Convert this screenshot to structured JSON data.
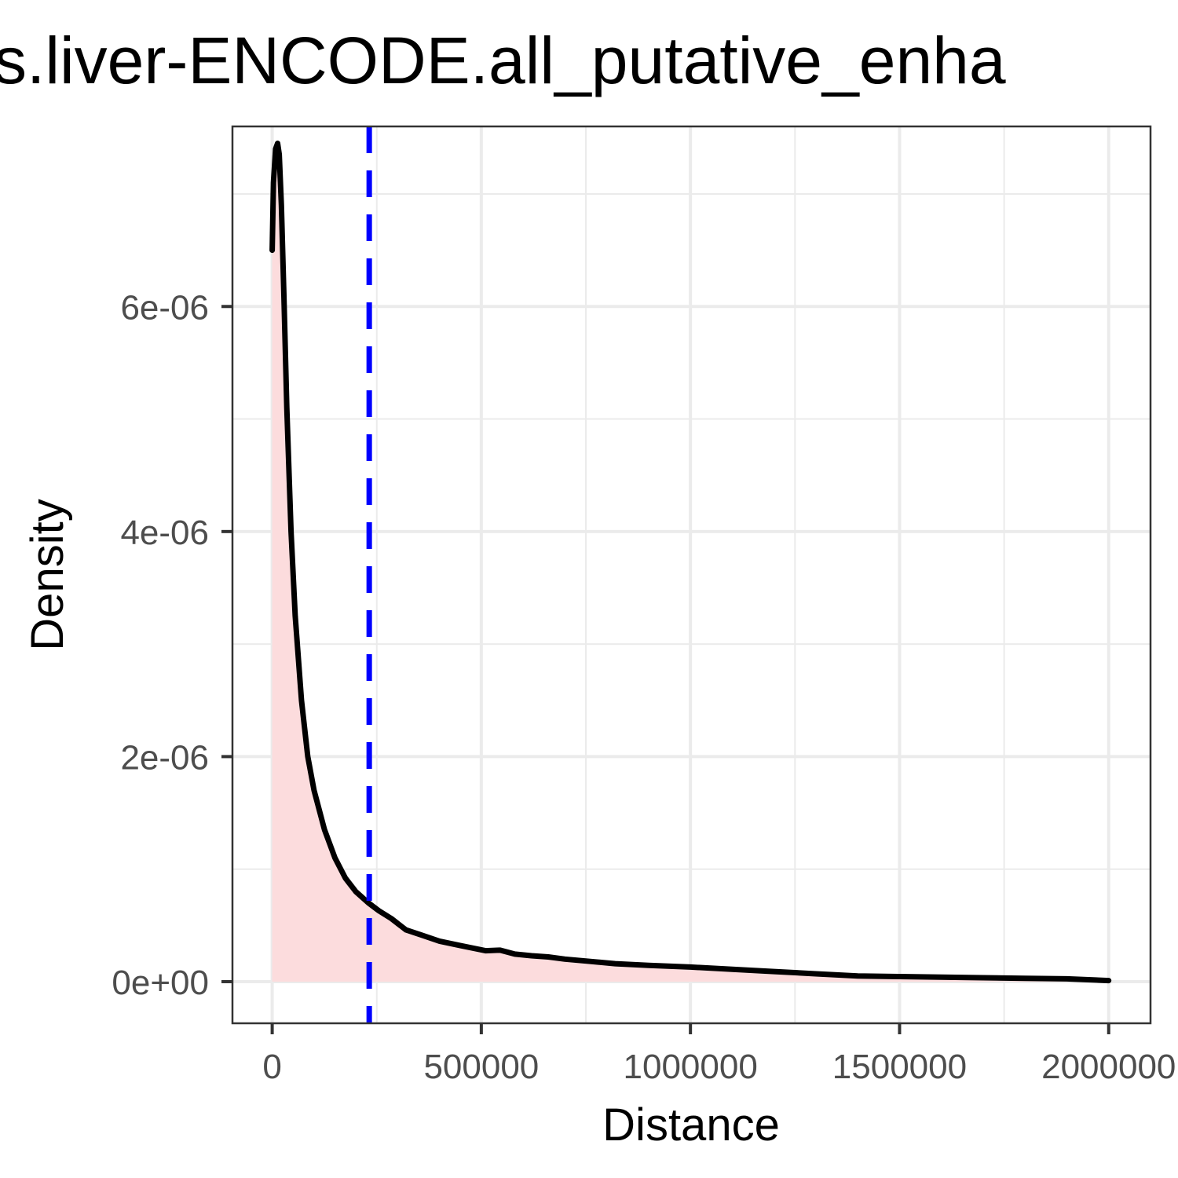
{
  "chart_data": {
    "type": "area",
    "title": "s.liver-ENCODE.all_putative_enha",
    "xlabel": "Distance",
    "ylabel": "Density",
    "xlim": [
      -95000,
      2100000
    ],
    "ylim": [
      -3.7e-07,
      7.6e-06
    ],
    "grid": true,
    "x_ticks": [
      {
        "value": 0,
        "label": "0"
      },
      {
        "value": 500000,
        "label": "500000"
      },
      {
        "value": 1000000,
        "label": "1000000"
      },
      {
        "value": 1500000,
        "label": "1500000"
      },
      {
        "value": 2000000,
        "label": "2000000"
      }
    ],
    "y_ticks": [
      {
        "value": 0,
        "label": "0e+00"
      },
      {
        "value": 2e-06,
        "label": "2e-06"
      },
      {
        "value": 4e-06,
        "label": "4e-06"
      },
      {
        "value": 6e-06,
        "label": "6e-06"
      }
    ],
    "x_minor": [
      250000,
      750000,
      1250000,
      1750000
    ],
    "y_minor": [
      1e-06,
      3e-06,
      5e-06,
      7e-06
    ],
    "series": [
      {
        "color": "#000000",
        "fill": "#fcdcdd",
        "x": [
          0,
          3000,
          8000,
          13000,
          17000,
          22000,
          28000,
          35000,
          45000,
          55000,
          70000,
          85000,
          100000,
          125000,
          150000,
          175000,
          200000,
          230000,
          255000,
          285000,
          320000,
          360000,
          400000,
          450000,
          510000,
          545000,
          580000,
          620000,
          660000,
          700000,
          760000,
          820000,
          900000,
          1000000,
          1100000,
          1200000,
          1300000,
          1400000,
          1500000,
          1600000,
          1700000,
          1800000,
          1900000,
          2000000
        ],
        "y": [
          6.5e-06,
          7.1e-06,
          7.4e-06,
          7.45e-06,
          7.35e-06,
          6.9e-06,
          6.1e-06,
          5.1e-06,
          4e-06,
          3.25e-06,
          2.5e-06,
          2e-06,
          1.7e-06,
          1.35e-06,
          1.1e-06,
          9.2e-07,
          8e-07,
          7e-07,
          6.3e-07,
          5.6e-07,
          4.6e-07,
          4.1e-07,
          3.6e-07,
          3.2e-07,
          2.75e-07,
          2.8e-07,
          2.45e-07,
          2.3e-07,
          2.2e-07,
          2e-07,
          1.8e-07,
          1.6e-07,
          1.45e-07,
          1.3e-07,
          1.1e-07,
          9e-08,
          7e-08,
          5e-08,
          4.5e-08,
          4e-08,
          3.5e-08,
          3e-08,
          2.5e-08,
          1e-08
        ]
      }
    ],
    "reference_lines": [
      {
        "orientation": "vertical",
        "x": 232000,
        "color": "#0000ff",
        "style": "dashed"
      }
    ]
  }
}
